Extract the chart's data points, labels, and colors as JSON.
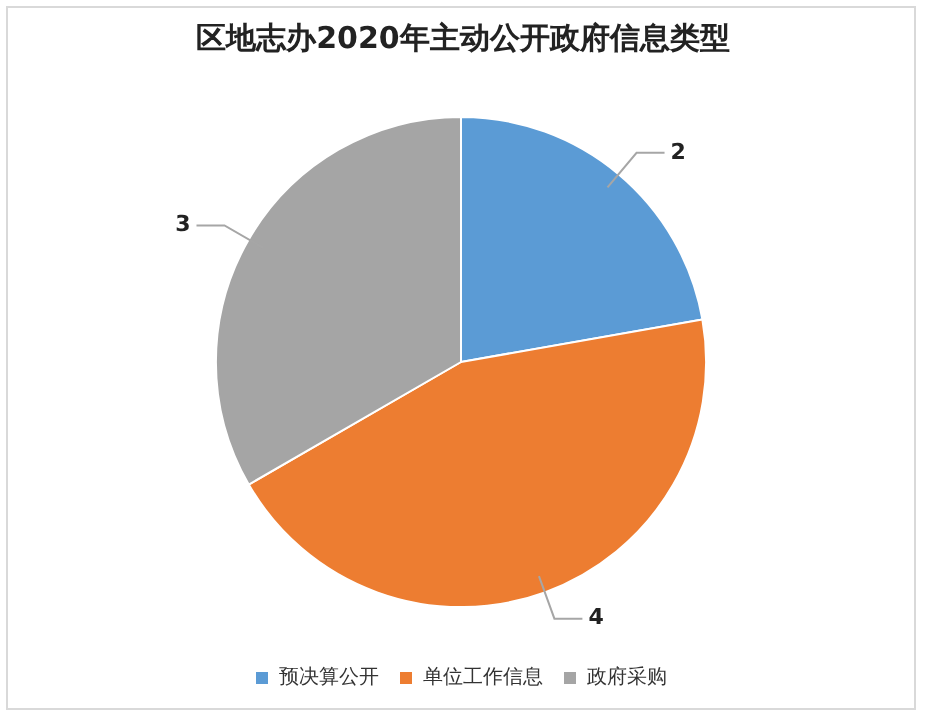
{
  "chart_data": {
    "type": "pie",
    "title": "区地志办2020年主动公开政府信息类型",
    "categories": [
      "预决算公开",
      "单位工作信息",
      "政府采购"
    ],
    "values": [
      2,
      4,
      3
    ],
    "colors": [
      "#5b9bd5",
      "#ed7d31",
      "#a5a5a5"
    ],
    "data_labels": true,
    "legend": "bottom"
  }
}
